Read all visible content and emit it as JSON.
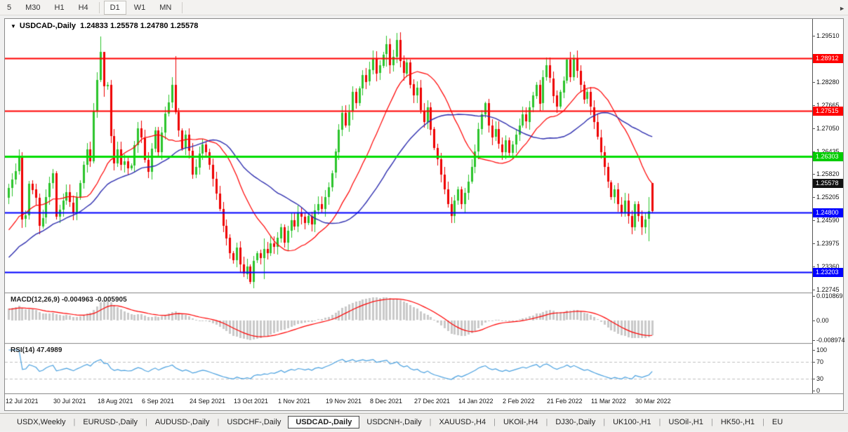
{
  "toolbar": {
    "timeframes": [
      {
        "label": "5",
        "active": false
      },
      {
        "label": "M30",
        "active": false
      },
      {
        "label": "H1",
        "active": false
      },
      {
        "label": "H4",
        "active": false
      },
      {
        "label": "D1",
        "active": true
      },
      {
        "label": "W1",
        "active": false
      },
      {
        "label": "MN",
        "active": false
      }
    ]
  },
  "title": {
    "dropdown_icon": "▼",
    "symbol": "USDCAD-,Daily",
    "ohlc": "1.24833 1.25578 1.24780 1.25578"
  },
  "price_axis": {
    "ticks": [
      "1.29510",
      "1.28895",
      "1.28280",
      "1.27665",
      "1.27050",
      "1.26435",
      "1.25820",
      "1.25205",
      "1.24590",
      "1.23975",
      "1.23360",
      "1.22745"
    ]
  },
  "indicators": {
    "macd": {
      "name": "MACD(12,26,9)",
      "values_text": "-0.004963 -0.005905",
      "fast": 12,
      "slow": 26,
      "signal": 9,
      "axis_labels": [
        {
          "text": "0.010869",
          "value": 0.010869
        },
        {
          "text": "0.00",
          "value": 0
        },
        {
          "text": "-0.008974",
          "value": -0.008974
        }
      ],
      "histogram_color": "#c9c9c9",
      "signal_color": "#ff0000"
    },
    "rsi": {
      "name": "RSI(14)",
      "value_text": "47.4989",
      "period": 14,
      "axis_labels": [
        {
          "text": "100",
          "value": 100
        },
        {
          "text": "70",
          "value": 70
        },
        {
          "text": "30",
          "value": 30
        },
        {
          "text": "0",
          "value": 0
        }
      ],
      "levels": [
        70,
        30
      ],
      "line_color": "#4aa1e0",
      "level_color": "#c0c0c0"
    }
  },
  "date_axis": {
    "labels": [
      {
        "text": "12 Jul 2021",
        "day": 0
      },
      {
        "text": "30 Jul 2021",
        "day": 14
      },
      {
        "text": "18 Aug 2021",
        "day": 27
      },
      {
        "text": "6 Sep 2021",
        "day": 40
      },
      {
        "text": "24 Sep 2021",
        "day": 54
      },
      {
        "text": "13 Oct 2021",
        "day": 67
      },
      {
        "text": "1 Nov 2021",
        "day": 80
      },
      {
        "text": "19 Nov 2021",
        "day": 94
      },
      {
        "text": "8 Dec 2021",
        "day": 107
      },
      {
        "text": "27 Dec 2021",
        "day": 120
      },
      {
        "text": "14 Jan 2022",
        "day": 133
      },
      {
        "text": "2 Feb 2022",
        "day": 146
      },
      {
        "text": "21 Feb 2022",
        "day": 159
      },
      {
        "text": "11 Mar 2022",
        "day": 172
      },
      {
        "text": "30 Mar 2022",
        "day": 185
      }
    ]
  },
  "tabs": {
    "items": [
      {
        "label": "USDX,Weekly",
        "active": false
      },
      {
        "label": "EURUSD-,Daily",
        "active": false
      },
      {
        "label": "AUDUSD-,Daily",
        "active": false
      },
      {
        "label": "USDCHF-,Daily",
        "active": false
      },
      {
        "label": "USDCAD-,Daily",
        "active": true
      },
      {
        "label": "USDCNH-,Daily",
        "active": false
      },
      {
        "label": "XAUUSD-,H4",
        "active": false
      },
      {
        "label": "UKOil-,H4",
        "active": false
      },
      {
        "label": "DJ30-,Daily",
        "active": false
      },
      {
        "label": "UK100-,H1",
        "active": false
      },
      {
        "label": "USOil-,H1",
        "active": false
      },
      {
        "label": "HK50-,H1",
        "active": false
      },
      {
        "label": "EU",
        "active": false
      }
    ],
    "scroll_right_icon": "►"
  },
  "chart_data": {
    "type": "candlestick",
    "symbol": "USDCAD",
    "timeframe": "Daily",
    "title": "USDCAD-,Daily",
    "ohlc_current": {
      "open": 1.24833,
      "high": 1.25578,
      "low": 1.2478,
      "close": 1.25578
    },
    "ylim": [
      1.2267,
      1.2996
    ],
    "x_start_date": "12 Jul 2021",
    "x_end_date": "8 Apr 2022",
    "bull_color": "#2bc42b",
    "bear_color": "#ee0000",
    "first_open": 1.2519,
    "closes": [
      1.2545,
      1.2568,
      1.259,
      1.2628,
      1.2462,
      1.2472,
      1.2557,
      1.2541,
      1.2519,
      1.2444,
      1.2466,
      1.2521,
      1.2559,
      1.2585,
      1.247,
      1.2488,
      1.2512,
      1.2534,
      1.2507,
      1.2479,
      1.2521,
      1.2559,
      1.2607,
      1.2649,
      1.2617,
      1.275,
      1.2834,
      1.2908,
      1.2817,
      1.282,
      1.2684,
      1.2612,
      1.2649,
      1.2607,
      1.2617,
      1.2598,
      1.2605,
      1.2659,
      1.2704,
      1.2679,
      1.2621,
      1.2589,
      1.2651,
      1.2699,
      1.2641,
      1.2694,
      1.2744,
      1.2774,
      1.2821,
      1.2748,
      1.2699,
      1.2651,
      1.2687,
      1.2644,
      1.2581,
      1.2601,
      1.2638,
      1.2662,
      1.2641,
      1.2608,
      1.257,
      1.2531,
      1.2489,
      1.2445,
      1.2412,
      1.2371,
      1.2352,
      1.2386,
      1.2341,
      1.2317,
      1.2337,
      1.2296,
      1.2352,
      1.2371,
      1.2358,
      1.2382,
      1.2371,
      1.2397,
      1.2388,
      1.2412,
      1.2441,
      1.2399,
      1.2431,
      1.2459,
      1.2442,
      1.2478,
      1.2469,
      1.2452,
      1.2471,
      1.2448,
      1.2486,
      1.2502,
      1.2489,
      1.2521,
      1.2547,
      1.2585,
      1.2642,
      1.2701,
      1.2745,
      1.2712,
      1.2748,
      1.2801,
      1.2772,
      1.2811,
      1.2847,
      1.2829,
      1.2861,
      1.2892,
      1.2851,
      1.2872,
      1.2901,
      1.2928,
      1.2872,
      1.2895,
      1.294,
      1.2884,
      1.2852,
      1.2881,
      1.2822,
      1.2792,
      1.2812,
      1.2752,
      1.2722,
      1.2761,
      1.2702,
      1.2652,
      1.2622,
      1.2581,
      1.2542,
      1.2502,
      1.2471,
      1.2512,
      1.2541,
      1.2502,
      1.2532,
      1.2562,
      1.2601,
      1.2642,
      1.2702,
      1.2741,
      1.2771,
      1.2712,
      1.2681,
      1.2702,
      1.2662,
      1.2641,
      1.2672,
      1.2638,
      1.2661,
      1.2688,
      1.2712,
      1.2741,
      1.2722,
      1.2761,
      1.2792,
      1.2821,
      1.2771,
      1.2841,
      1.2872,
      1.2838,
      1.2792,
      1.2762,
      1.2801,
      1.2832,
      1.2888,
      1.2841,
      1.2892,
      1.2858,
      1.2821,
      1.2782,
      1.2801,
      1.2761,
      1.2721,
      1.2681,
      1.2641,
      1.2601,
      1.2561,
      1.2521,
      1.2541,
      1.2501,
      1.2481,
      1.2512,
      1.2471,
      1.2441,
      1.2502,
      1.2471,
      1.2441,
      1.2462,
      1.2483,
      1.25578
    ],
    "wick_overrides": {
      "4": [
        1.2641,
        1.244
      ],
      "9": [
        1.2531,
        1.2423
      ],
      "27": [
        1.2949,
        1.2827
      ],
      "28": [
        1.2905,
        1.2789
      ],
      "49": [
        1.2896,
        1.2741
      ],
      "71": [
        1.2341,
        1.2288
      ],
      "75": [
        1.241,
        1.2302
      ],
      "111": [
        1.2951,
        1.2868
      ],
      "114": [
        1.2958,
        1.2878
      ],
      "164": [
        1.289,
        1.2825
      ],
      "166": [
        1.2901,
        1.2832
      ],
      "188": [
        1.2521,
        1.2403
      ],
      "189": [
        1.25578,
        1.2478
      ]
    },
    "ma_fast": {
      "period": 20,
      "color": "#ff0000"
    },
    "ma_slow": {
      "period": 40,
      "color": "#3030b0"
    },
    "hlines": [
      {
        "price": 1.28912,
        "label": "1.28912",
        "color": "#ff0000",
        "width": 2
      },
      {
        "price": 1.27515,
        "label": "1.27515",
        "color": "#ff0000",
        "width": 2
      },
      {
        "price": 1.26303,
        "label": "1.26303",
        "color": "#00dd00",
        "width": 3
      },
      {
        "price": 1.248,
        "label": "1.24800",
        "color": "#0000ff",
        "width": 2
      },
      {
        "price": 1.23203,
        "label": "1.23203",
        "color": "#0000ff",
        "width": 2
      }
    ],
    "current_price": {
      "value": 1.25578,
      "label": "1.25578",
      "badge_color": "#111111"
    },
    "macd_range": [
      -0.0097,
      0.0113
    ],
    "rsi_range": [
      0,
      100
    ]
  }
}
